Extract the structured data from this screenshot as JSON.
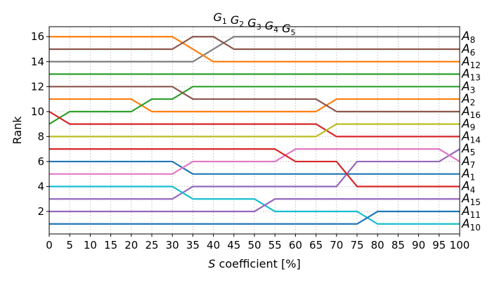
{
  "chart_data": {
    "type": "line",
    "title": "G1 G2 G3 G4 G5",
    "title_parts": [
      {
        "main": "G",
        "sub": "1"
      },
      {
        "main": "G",
        "sub": "2"
      },
      {
        "main": "G",
        "sub": "3"
      },
      {
        "main": "G",
        "sub": "4"
      },
      {
        "main": "G",
        "sub": "5"
      }
    ],
    "xlabel": "S coefficient [%]",
    "xlabel_italic": "S",
    "xlabel_rest": " coefficient [%]",
    "ylabel": "Rank",
    "x": [
      0,
      5,
      10,
      15,
      20,
      25,
      30,
      35,
      40,
      45,
      50,
      55,
      60,
      65,
      70,
      75,
      80,
      85,
      90,
      95,
      100
    ],
    "xlim": [
      0,
      100
    ],
    "ylim": [
      0.2,
      16.8
    ],
    "x_ticks": [
      0,
      5,
      10,
      15,
      20,
      25,
      30,
      35,
      40,
      45,
      50,
      55,
      60,
      65,
      70,
      75,
      80,
      85,
      90,
      95,
      100
    ],
    "y_ticks": [
      2,
      4,
      6,
      8,
      10,
      12,
      14,
      16
    ],
    "grid": true,
    "right_labels": [
      {
        "main": "A",
        "sub": "8",
        "rank": 16
      },
      {
        "main": "A",
        "sub": "6",
        "rank": 15
      },
      {
        "main": "A",
        "sub": "12",
        "rank": 14
      },
      {
        "main": "A",
        "sub": "13",
        "rank": 13
      },
      {
        "main": "A",
        "sub": "3",
        "rank": 12
      },
      {
        "main": "A",
        "sub": "2",
        "rank": 11
      },
      {
        "main": "A",
        "sub": "16",
        "rank": 10
      },
      {
        "main": "A",
        "sub": "9",
        "rank": 9
      },
      {
        "main": "A",
        "sub": "14",
        "rank": 8
      },
      {
        "main": "A",
        "sub": "5",
        "rank": 7
      },
      {
        "main": "A",
        "sub": "7",
        "rank": 6
      },
      {
        "main": "A",
        "sub": "1",
        "rank": 5
      },
      {
        "main": "A",
        "sub": "4",
        "rank": 4
      },
      {
        "main": "A",
        "sub": "15",
        "rank": 3
      },
      {
        "main": "A",
        "sub": "11",
        "rank": 2
      },
      {
        "main": "A",
        "sub": "10",
        "rank": 1
      }
    ],
    "series": [
      {
        "color": "#1f77b4",
        "values": [
          6,
          6,
          6,
          6,
          6,
          6,
          6,
          5,
          5,
          5,
          5,
          5,
          5,
          5,
          5,
          5,
          5,
          5,
          5,
          5,
          5
        ]
      },
      {
        "color": "#ff7f0e",
        "values": [
          11,
          11,
          11,
          11,
          11,
          10,
          10,
          10,
          10,
          10,
          10,
          10,
          10,
          10,
          11,
          11,
          11,
          11,
          11,
          11,
          11
        ]
      },
      {
        "color": "#2ca02c",
        "values": [
          9,
          10,
          10,
          10,
          10,
          11,
          11,
          12,
          12,
          12,
          12,
          12,
          12,
          12,
          12,
          12,
          12,
          12,
          12,
          12,
          12
        ]
      },
      {
        "color": "#d62728",
        "values": [
          10,
          9,
          9,
          9,
          9,
          9,
          9,
          9,
          9,
          9,
          9,
          9,
          9,
          9,
          8,
          8,
          8,
          8,
          8,
          8,
          8
        ]
      },
      {
        "color": "#9467bd",
        "values": [
          3,
          3,
          3,
          3,
          3,
          3,
          3,
          4,
          4,
          4,
          4,
          4,
          4,
          4,
          4,
          6,
          6,
          6,
          6,
          6,
          7
        ]
      },
      {
        "color": "#8c564b",
        "values": [
          12,
          12,
          12,
          12,
          12,
          12,
          12,
          11,
          11,
          11,
          11,
          11,
          11,
          11,
          10,
          10,
          10,
          10,
          10,
          10,
          10
        ]
      },
      {
        "color": "#e377c2",
        "values": [
          5,
          5,
          5,
          5,
          5,
          5,
          5,
          6,
          6,
          6,
          6,
          6,
          7,
          7,
          7,
          7,
          7,
          7,
          7,
          7,
          6
        ]
      },
      {
        "color": "#7f7f7f",
        "values": [
          14,
          14,
          14,
          14,
          14,
          14,
          14,
          14,
          15,
          16,
          16,
          16,
          16,
          16,
          16,
          16,
          16,
          16,
          16,
          16,
          16
        ]
      },
      {
        "color": "#bcbd22",
        "values": [
          8,
          8,
          8,
          8,
          8,
          8,
          8,
          8,
          8,
          8,
          8,
          8,
          8,
          8,
          9,
          9,
          9,
          9,
          9,
          9,
          9
        ]
      },
      {
        "color": "#17becf",
        "values": [
          4,
          4,
          4,
          4,
          4,
          4,
          4,
          3,
          3,
          3,
          3,
          2,
          2,
          2,
          2,
          2,
          1,
          1,
          1,
          1,
          1
        ]
      },
      {
        "color": "#1f77b4",
        "values": [
          1,
          1,
          1,
          1,
          1,
          1,
          1,
          1,
          1,
          1,
          1,
          1,
          1,
          1,
          1,
          1,
          2,
          2,
          2,
          2,
          2
        ]
      },
      {
        "color": "#ff7f0e",
        "values": [
          16,
          16,
          16,
          16,
          16,
          16,
          16,
          15,
          14,
          14,
          14,
          14,
          14,
          14,
          14,
          14,
          14,
          14,
          14,
          14,
          14
        ]
      },
      {
        "color": "#2ca02c",
        "values": [
          13,
          13,
          13,
          13,
          13,
          13,
          13,
          13,
          13,
          13,
          13,
          13,
          13,
          13,
          13,
          13,
          13,
          13,
          13,
          13,
          13
        ]
      },
      {
        "color": "#d62728",
        "values": [
          7,
          7,
          7,
          7,
          7,
          7,
          7,
          7,
          7,
          7,
          7,
          7,
          6,
          6,
          6,
          4,
          4,
          4,
          4,
          4,
          4
        ]
      },
      {
        "color": "#9467bd",
        "values": [
          2,
          2,
          2,
          2,
          2,
          2,
          2,
          2,
          2,
          2,
          2,
          3,
          3,
          3,
          3,
          3,
          3,
          3,
          3,
          3,
          3
        ]
      },
      {
        "color": "#8c564b",
        "values": [
          15,
          15,
          15,
          15,
          15,
          15,
          15,
          16,
          16,
          15,
          15,
          15,
          15,
          15,
          15,
          15,
          15,
          15,
          15,
          15,
          15
        ]
      }
    ]
  }
}
